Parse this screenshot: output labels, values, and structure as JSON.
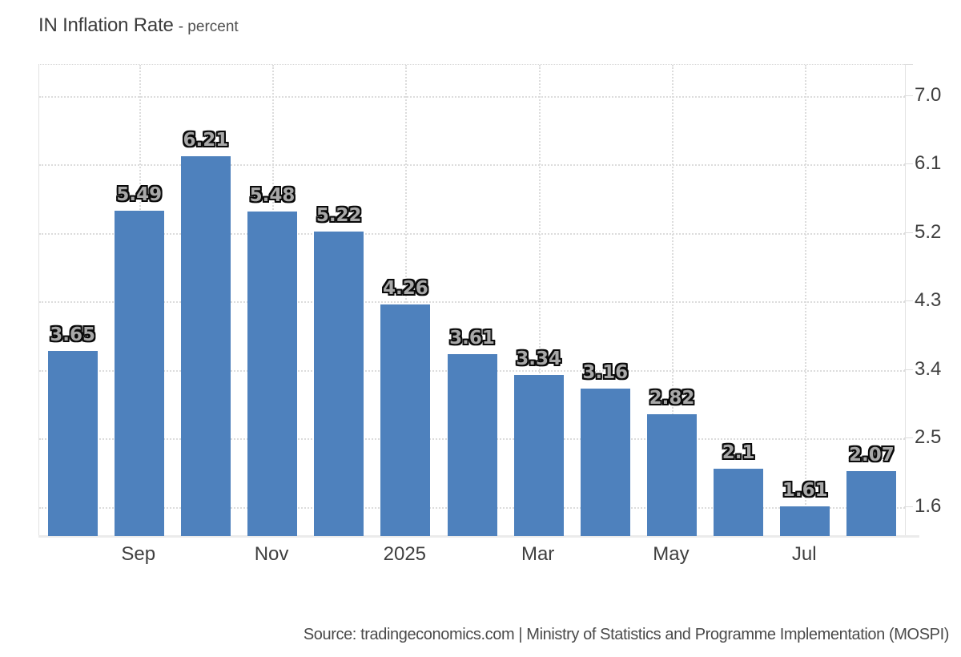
{
  "title": {
    "main": "IN Inflation Rate",
    "subtitle": "- percent"
  },
  "source": "Source: tradingeconomics.com | Ministry of Statistics and Programme Implementation (MOSPI)",
  "colors": {
    "bar": "#4e81bd",
    "grid": "#dcdcdc",
    "axis": "#e2e2e2",
    "bottom_axis": "#ebebeb",
    "tick_text": "#3f3f3f",
    "bar_label_fill": "#a8a8a8",
    "bar_label_outline": "#0a0a0a"
  },
  "chart_data": {
    "type": "bar",
    "title": "IN Inflation Rate",
    "ylabel": "percent",
    "grid": true,
    "legend": false,
    "y_axis_side": "right",
    "ylim": [
      1.22,
      7.41
    ],
    "values": [
      3.65,
      5.49,
      6.21,
      5.48,
      5.22,
      4.26,
      3.61,
      3.34,
      3.16,
      2.82,
      2.1,
      1.61,
      2.07
    ],
    "bar_labels": [
      "3.65",
      "5.49",
      "6.21",
      "5.48",
      "5.22",
      "4.26",
      "3.61",
      "3.34",
      "3.16",
      "2.82",
      "2.1",
      "1.61",
      "2.07"
    ],
    "y_ticks": [
      {
        "value": 7.0,
        "label": "7.0"
      },
      {
        "value": 6.1,
        "label": "6.1"
      },
      {
        "value": 5.2,
        "label": "5.2"
      },
      {
        "value": 4.3,
        "label": "4.3"
      },
      {
        "value": 3.4,
        "label": "3.4"
      },
      {
        "value": 2.5,
        "label": "2.5"
      },
      {
        "value": 1.6,
        "label": "1.6"
      }
    ],
    "x_ticks": [
      {
        "label": "Sep",
        "bar_index": 1
      },
      {
        "label": "Nov",
        "bar_index": 3
      },
      {
        "label": "2025",
        "bar_index": 5
      },
      {
        "label": "Mar",
        "bar_index": 7
      },
      {
        "label": "May",
        "bar_index": 9
      },
      {
        "label": "Jul",
        "bar_index": 11
      }
    ]
  }
}
